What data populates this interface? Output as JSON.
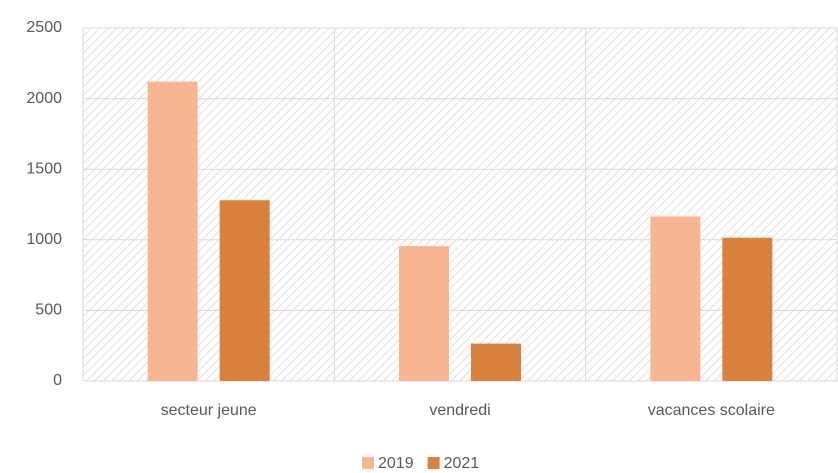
{
  "chart_data": {
    "type": "bar",
    "categories": [
      "secteur jeune",
      "vendredi",
      "vacances scolaire"
    ],
    "series": [
      {
        "name": "2019",
        "color": "#f8b592",
        "values": [
          2120,
          955,
          1165
        ]
      },
      {
        "name": "2021",
        "color": "#d9823e",
        "values": [
          1280,
          265,
          1015
        ]
      }
    ],
    "ylim": [
      0,
      2500
    ],
    "yticks": [
      0,
      500,
      1000,
      1500,
      2000,
      2500
    ],
    "grid": true,
    "legend": "bottom"
  }
}
